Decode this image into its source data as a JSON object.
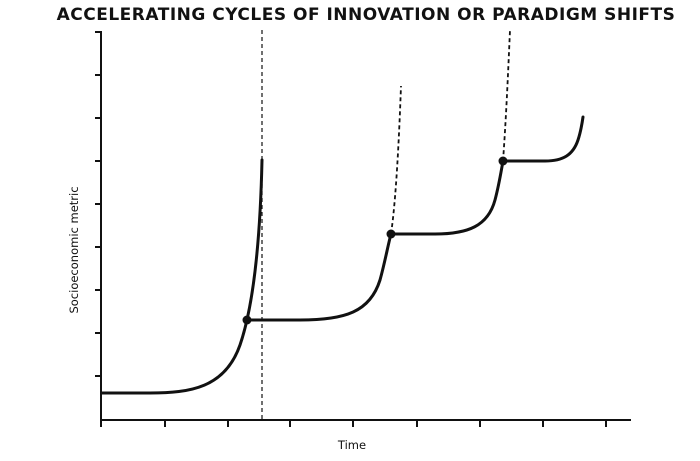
{
  "title": "ACCELERATING CYCLES OF INNOVATION OR PARADIGM SHIFTS",
  "x_axis_label": "Time",
  "y_axis_label": "Socioeconomic metric",
  "colors": {
    "ink": "#111111",
    "background": "#ffffff"
  },
  "cycles": [
    {
      "name": "cycle-1",
      "transition": "dashed-vertical-line"
    },
    {
      "name": "cycle-2",
      "transition": "dashed-extension"
    },
    {
      "name": "cycle-3",
      "transition": "dashed-extension"
    },
    {
      "name": "cycle-4",
      "transition": "solid-rise"
    }
  ]
}
